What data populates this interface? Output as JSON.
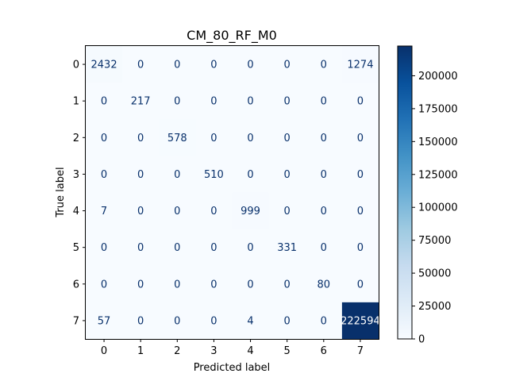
{
  "chart_data": {
    "type": "heatmap",
    "title": "CM_80_RF_M0",
    "xlabel": "Predicted label",
    "ylabel": "True label",
    "x_categories": [
      "0",
      "1",
      "2",
      "3",
      "4",
      "5",
      "6",
      "7"
    ],
    "y_categories": [
      "0",
      "1",
      "2",
      "3",
      "4",
      "5",
      "6",
      "7"
    ],
    "matrix": [
      [
        2432,
        0,
        0,
        0,
        0,
        0,
        0,
        1274
      ],
      [
        0,
        217,
        0,
        0,
        0,
        0,
        0,
        0
      ],
      [
        0,
        0,
        578,
        0,
        0,
        0,
        0,
        0
      ],
      [
        0,
        0,
        0,
        510,
        0,
        0,
        0,
        0
      ],
      [
        7,
        0,
        0,
        0,
        999,
        0,
        0,
        0
      ],
      [
        0,
        0,
        0,
        0,
        0,
        331,
        0,
        0
      ],
      [
        0,
        0,
        0,
        0,
        0,
        0,
        80,
        0
      ],
      [
        57,
        0,
        0,
        0,
        4,
        0,
        0,
        222594
      ]
    ],
    "colormap": "Blues",
    "colors": {
      "low": "#f7fbff",
      "high": "#08306b",
      "text_dark": "#08306b",
      "text_light": "#ffffff"
    },
    "colorbar": {
      "vmin": 0,
      "vmax": 222594,
      "ticks": [
        "0",
        "25000",
        "50000",
        "75000",
        "100000",
        "125000",
        "150000",
        "175000",
        "200000"
      ]
    },
    "grid": false
  }
}
